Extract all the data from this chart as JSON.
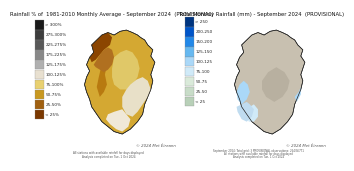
{
  "left_title": "Rainfall % of  1981-2010 Monthly Average - September 2024  (PROVISIONAL)",
  "right_title": "Total Monthly Rainfall (mm) - September 2024  (PROVISIONAL)",
  "left_legend_labels": [
    "> 300%",
    "275-300%",
    "225-275%",
    "175-225%",
    "125-175%",
    "100-125%",
    "75-100%",
    "50-75%",
    "25-50%",
    "< 25%"
  ],
  "left_legend_colors": [
    "#1a1a1a",
    "#3d3d3d",
    "#595959",
    "#888888",
    "#b0b0b0",
    "#e8e0d0",
    "#e8d070",
    "#c89820",
    "#a06010",
    "#7a3800"
  ],
  "right_legend_labels": [
    "> 250",
    "200-250",
    "150-200",
    "125-150",
    "100-125",
    "75-100",
    "50-75",
    "25-50",
    "< 25"
  ],
  "right_legend_colors": [
    "#003580",
    "#0055c8",
    "#2288e8",
    "#66b8f0",
    "#aad8f8",
    "#d0eaf8",
    "#daeada",
    "#c8dcc8",
    "#b8d0b8"
  ],
  "bg_color": "#ffffff",
  "footer_left": "© 2024 Met Éireann",
  "footer_right": "© 2024 Met Éireann",
  "title_fontsize": 3.8,
  "legend_fontsize": 3.0,
  "footer_fontsize": 2.8
}
